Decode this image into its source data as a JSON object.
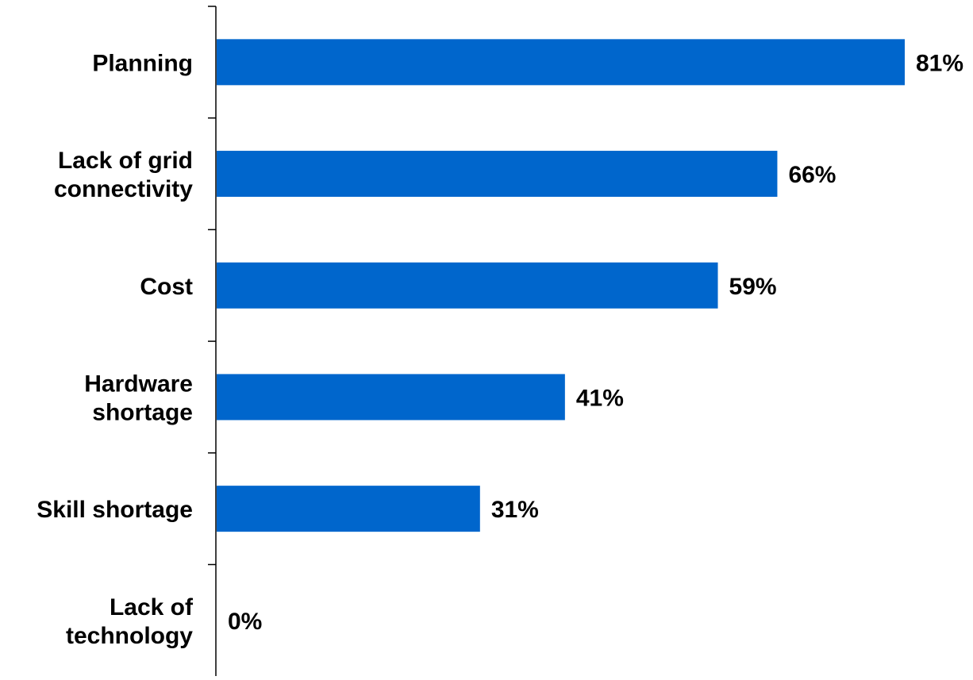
{
  "chart_data": {
    "type": "bar",
    "orientation": "horizontal",
    "categories": [
      [
        "Planning"
      ],
      [
        "Lack of grid",
        "connectivity"
      ],
      [
        "Cost"
      ],
      [
        "Hardware",
        "shortage"
      ],
      [
        "Skill shortage"
      ],
      [
        "Lack of",
        "technology"
      ]
    ],
    "values": [
      81,
      66,
      59,
      41,
      31,
      0
    ],
    "value_labels": [
      "81%",
      "66%",
      "59%",
      "41%",
      "31%",
      "0%"
    ],
    "xlim": [
      0,
      81
    ],
    "grid": false,
    "legend": "none",
    "bar_color": "#0066CC",
    "axis_color": "#000000"
  }
}
